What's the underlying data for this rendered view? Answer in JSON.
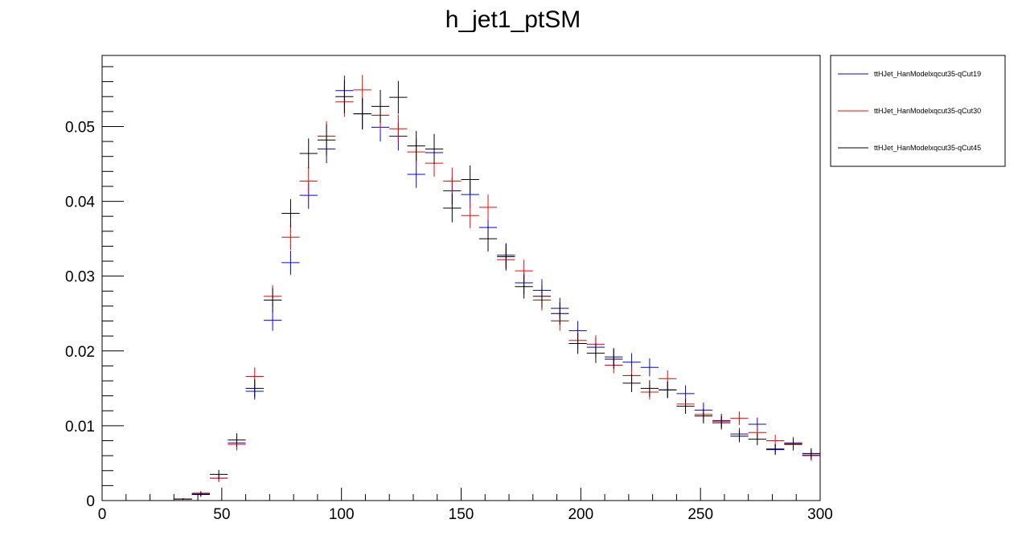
{
  "chart_data": {
    "type": "scatter",
    "title": "h_jet1_ptSM",
    "xlabel": "",
    "ylabel": "",
    "xlim": [
      0,
      300
    ],
    "ylim": [
      0,
      0.0595
    ],
    "xticks": [
      0,
      50,
      100,
      150,
      200,
      250,
      300
    ],
    "xtick_labels": [
      "0",
      "50",
      "100",
      "150",
      "200",
      "250",
      "300"
    ],
    "yticks": [
      0,
      0.01,
      0.02,
      0.03,
      0.04,
      0.05
    ],
    "ytick_labels": [
      "0",
      "0.01",
      "0.02",
      "0.03",
      "0.04",
      "0.05"
    ],
    "bin_width": 7.5,
    "grid": false,
    "legend_position": "top-right, outside plot",
    "x": [
      26.25,
      33.75,
      41.25,
      48.75,
      56.25,
      63.75,
      71.25,
      78.75,
      86.25,
      93.75,
      101.25,
      108.75,
      116.25,
      123.75,
      131.25,
      138.75,
      146.25,
      153.75,
      161.25,
      168.75,
      176.25,
      183.75,
      191.25,
      198.75,
      206.25,
      213.75,
      221.25,
      228.75,
      236.25,
      243.75,
      251.25,
      258.75,
      266.25,
      273.75,
      281.25,
      288.75,
      296.25
    ],
    "series": [
      {
        "name": "ttHJet_HanModelxqcut35-qCut19",
        "color": "#0000ff",
        "values": [
          0.0,
          0.0002,
          0.0009,
          0.003,
          0.0077,
          0.0146,
          0.0241,
          0.0318,
          0.0408,
          0.047,
          0.0548,
          0.0517,
          0.0499,
          0.0487,
          0.0436,
          0.0465,
          0.0414,
          0.0409,
          0.0365,
          0.0328,
          0.0291,
          0.0281,
          0.0257,
          0.0227,
          0.0205,
          0.0192,
          0.0185,
          0.0178,
          0.0148,
          0.0143,
          0.0121,
          0.0107,
          0.0089,
          0.0102,
          0.0069,
          0.0077,
          0.0061
        ],
        "errors": [
          0.0,
          0.0001,
          0.0003,
          0.0005,
          0.0008,
          0.0011,
          0.0014,
          0.0016,
          0.0018,
          0.0019,
          0.002,
          0.002,
          0.0019,
          0.0019,
          0.0018,
          0.0018,
          0.0018,
          0.0018,
          0.0017,
          0.0016,
          0.0015,
          0.0015,
          0.0014,
          0.0013,
          0.0013,
          0.0012,
          0.0012,
          0.0012,
          0.0011,
          0.0011,
          0.001,
          0.0009,
          0.0008,
          0.0009,
          0.0007,
          0.0008,
          0.0007
        ]
      },
      {
        "name": "ttHJet_HanModelxqcut35-qCut30",
        "color": "#ff0000",
        "values": [
          0.0,
          0.0002,
          0.001,
          0.003,
          0.0075,
          0.0166,
          0.0273,
          0.0352,
          0.0427,
          0.0487,
          0.0533,
          0.0549,
          0.0515,
          0.0497,
          0.0466,
          0.0451,
          0.0427,
          0.0381,
          0.0392,
          0.0322,
          0.0307,
          0.0268,
          0.024,
          0.0214,
          0.0209,
          0.0181,
          0.0167,
          0.0145,
          0.0163,
          0.0129,
          0.0115,
          0.0106,
          0.011,
          0.0091,
          0.008,
          0.0076,
          0.006
        ],
        "errors": [
          0.0,
          0.0001,
          0.0003,
          0.0005,
          0.0008,
          0.0012,
          0.0015,
          0.0017,
          0.0019,
          0.002,
          0.002,
          0.002,
          0.0019,
          0.0019,
          0.0018,
          0.0018,
          0.0018,
          0.0017,
          0.0017,
          0.0015,
          0.0015,
          0.0014,
          0.0013,
          0.0012,
          0.0012,
          0.0011,
          0.0011,
          0.001,
          0.0011,
          0.001,
          0.0009,
          0.0009,
          0.0009,
          0.0008,
          0.0008,
          0.0008,
          0.0007
        ]
      },
      {
        "name": "ttHJet_HanModelxqcut35-qCut45",
        "color": "#000000",
        "values": [
          0.0,
          0.0002,
          0.0008,
          0.0035,
          0.0081,
          0.015,
          0.0268,
          0.0384,
          0.0464,
          0.0482,
          0.054,
          0.0517,
          0.0527,
          0.0539,
          0.0474,
          0.047,
          0.0391,
          0.0429,
          0.035,
          0.0326,
          0.0286,
          0.0273,
          0.025,
          0.021,
          0.0197,
          0.0189,
          0.0157,
          0.015,
          0.0148,
          0.0126,
          0.0113,
          0.0104,
          0.0086,
          0.0082,
          0.0068,
          0.0075,
          0.0063
        ],
        "errors": [
          0.0,
          0.0001,
          0.0003,
          0.0006,
          0.0009,
          0.0012,
          0.0016,
          0.0019,
          0.002,
          0.0021,
          0.0022,
          0.0021,
          0.0022,
          0.0022,
          0.002,
          0.002,
          0.0019,
          0.0019,
          0.0017,
          0.0017,
          0.0016,
          0.0015,
          0.0015,
          0.0014,
          0.0013,
          0.0013,
          0.0012,
          0.0011,
          0.0011,
          0.001,
          0.001,
          0.0009,
          0.0008,
          0.0008,
          0.0007,
          0.0008,
          0.0007
        ]
      }
    ]
  }
}
